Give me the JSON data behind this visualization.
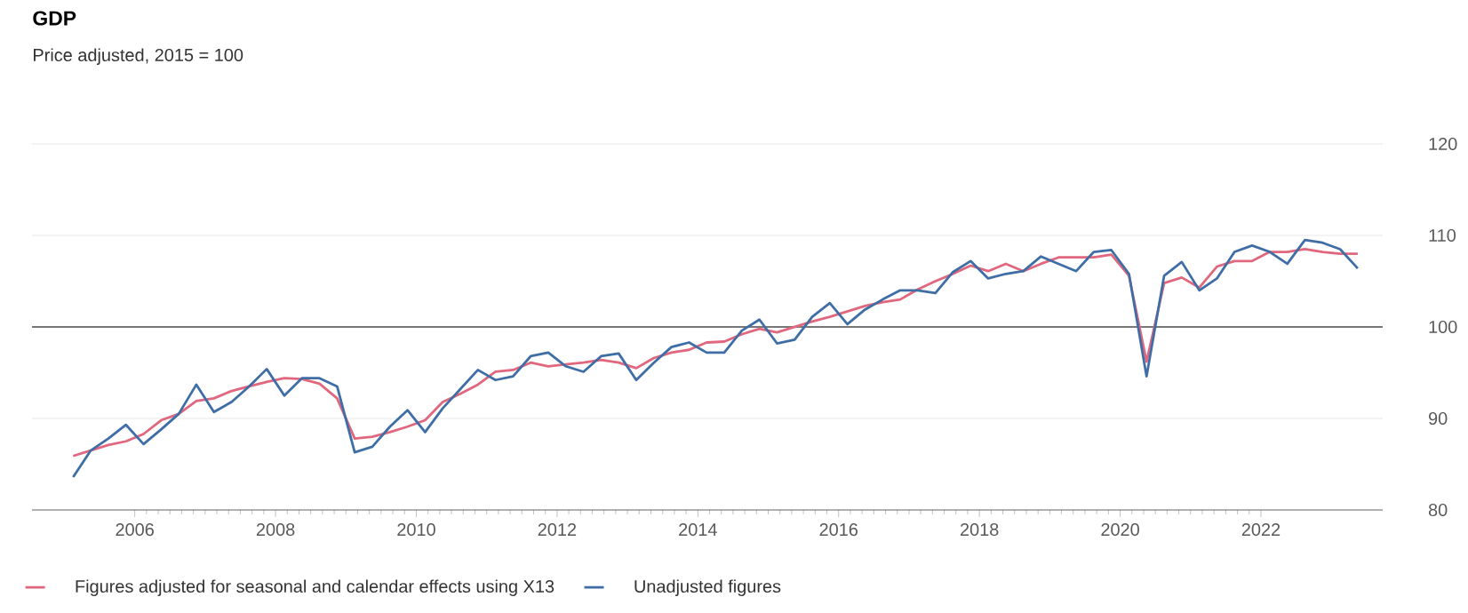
{
  "chart_data": {
    "type": "line",
    "title": "GDP",
    "subtitle": "Price adjusted, 2015 = 100",
    "x": [
      2005.125,
      2005.375,
      2005.625,
      2005.875,
      2006.125,
      2006.375,
      2006.625,
      2006.875,
      2007.125,
      2007.375,
      2007.625,
      2007.875,
      2008.125,
      2008.375,
      2008.625,
      2008.875,
      2009.125,
      2009.375,
      2009.625,
      2009.875,
      2010.125,
      2010.375,
      2010.625,
      2010.875,
      2011.125,
      2011.375,
      2011.625,
      2011.875,
      2012.125,
      2012.375,
      2012.625,
      2012.875,
      2013.125,
      2013.375,
      2013.625,
      2013.875,
      2014.125,
      2014.375,
      2014.625,
      2014.875,
      2015.125,
      2015.375,
      2015.625,
      2015.875,
      2016.125,
      2016.375,
      2016.625,
      2016.875,
      2017.125,
      2017.375,
      2017.625,
      2017.875,
      2018.125,
      2018.375,
      2018.625,
      2018.875,
      2019.125,
      2019.375,
      2019.625,
      2019.875,
      2020.125,
      2020.375,
      2020.625,
      2020.875,
      2021.125,
      2021.375,
      2021.625,
      2021.875,
      2022.125,
      2022.375,
      2022.625,
      2022.875,
      2023.125,
      2023.375
    ],
    "series": [
      {
        "name": "Figures adjusted for seasonal and calendar effects using X13",
        "color": "#e0677e",
        "values": [
          85.9,
          86.5,
          87.1,
          87.5,
          88.3,
          89.8,
          90.5,
          91.9,
          92.2,
          93.0,
          93.5,
          94.0,
          94.4,
          94.3,
          93.8,
          92.2,
          87.8,
          88.0,
          88.5,
          89.1,
          89.8,
          91.8,
          92.7,
          93.7,
          95.1,
          95.3,
          96.1,
          95.7,
          95.9,
          96.1,
          96.4,
          96.1,
          95.5,
          96.6,
          97.2,
          97.5,
          98.3,
          98.4,
          99.2,
          99.8,
          99.4,
          100.0,
          100.6,
          101.1,
          101.7,
          102.3,
          102.7,
          103.0,
          104.1,
          105.0,
          105.8,
          106.7,
          106.1,
          106.9,
          106.1,
          106.9,
          107.6,
          107.6,
          107.6,
          107.9,
          105.6,
          96.2,
          104.8,
          105.4,
          104.3,
          106.6,
          107.2,
          107.2,
          108.2,
          108.2,
          108.5,
          108.2,
          108.0,
          108.0
        ]
      },
      {
        "name": "Unadjusted figures",
        "color": "#3f6ea6",
        "values": [
          83.6,
          86.5,
          87.8,
          89.3,
          87.2,
          88.8,
          90.5,
          93.7,
          90.7,
          91.8,
          93.5,
          95.4,
          92.5,
          94.4,
          94.4,
          93.5,
          86.3,
          86.9,
          89.1,
          90.9,
          88.5,
          91.1,
          93.2,
          95.3,
          94.2,
          94.6,
          96.8,
          97.2,
          95.7,
          95.1,
          96.8,
          97.1,
          94.2,
          96.1,
          97.8,
          98.3,
          97.2,
          97.2,
          99.6,
          100.8,
          98.2,
          98.6,
          101.1,
          102.6,
          100.3,
          101.9,
          103.0,
          104.0,
          104.0,
          103.7,
          106.0,
          107.2,
          105.3,
          105.8,
          106.1,
          107.7,
          106.9,
          106.1,
          108.2,
          108.4,
          105.8,
          94.6,
          105.6,
          107.1,
          104.0,
          105.3,
          108.2,
          108.9,
          108.2,
          106.9,
          109.5,
          109.2,
          108.5,
          106.4
        ]
      }
    ],
    "xlim": [
      2004.54,
      2023.73
    ],
    "xticks": [
      2006,
      2008,
      2010,
      2012,
      2014,
      2016,
      2018,
      2020,
      2022
    ],
    "ylim": [
      80,
      120
    ],
    "yticks": [
      80,
      90,
      100,
      110,
      120
    ],
    "ref_lines": [
      {
        "axis": "y",
        "value": 100,
        "color": "#777777"
      }
    ],
    "grid": "y",
    "legend": "bottom"
  }
}
